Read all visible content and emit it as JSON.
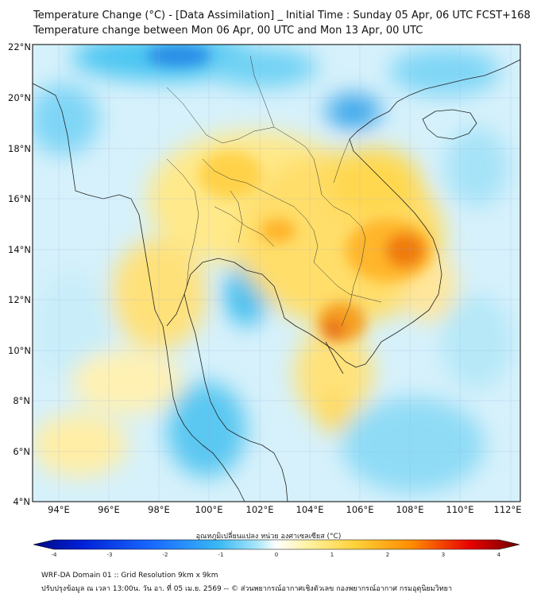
{
  "header": {
    "title_line1": "Temperature Change (°C) - [Data Assimilation] _ Initial Time : Sunday 05 Apr, 06 UTC FCST+168",
    "title_line2": "Temperature change between Mon 06 Apr, 00 UTC and Mon 13 Apr, 00 UTC"
  },
  "map": {
    "lat_labels": [
      "22°N",
      "20°N",
      "18°N",
      "16°N",
      "14°N",
      "12°N",
      "10°N",
      "8°N",
      "6°N",
      "4°N"
    ],
    "lon_labels": [
      "94°E",
      "96°E",
      "98°E",
      "100°E",
      "102°E",
      "104°E",
      "106°E",
      "108°E",
      "110°E",
      "112°E"
    ]
  },
  "colorbar": {
    "title": "อุณหภูมิเปลี่ยนแปลง หน่วย องศาเซลเซียส (°C)",
    "labels": [
      "-4",
      "-3",
      "-2",
      "-1",
      "0",
      "1",
      "2",
      "3",
      "4"
    ],
    "min": -4,
    "max": 4,
    "colors": [
      "#000a82",
      "#0020d8",
      "#1a6cff",
      "#39b8f4",
      "#a8e6f8",
      "#ffffff",
      "#fff3a8",
      "#ffd23a",
      "#ff8a00",
      "#e60000",
      "#6e0000"
    ]
  },
  "footer": {
    "line1": "WRF-DA Domain 01 :: Grid Resolution 9km x 9km",
    "line2": "ปรับปรุงข้อมูล ณ เวลา 13:00น. วัน อา. ที่ 05 เม.ย. 2569 -- © ส่วนพยากรณ์อากาศเชิงตัวเลข กองพยากรณ์อากาศ กรมอุตุนิยมวิทยา"
  }
}
